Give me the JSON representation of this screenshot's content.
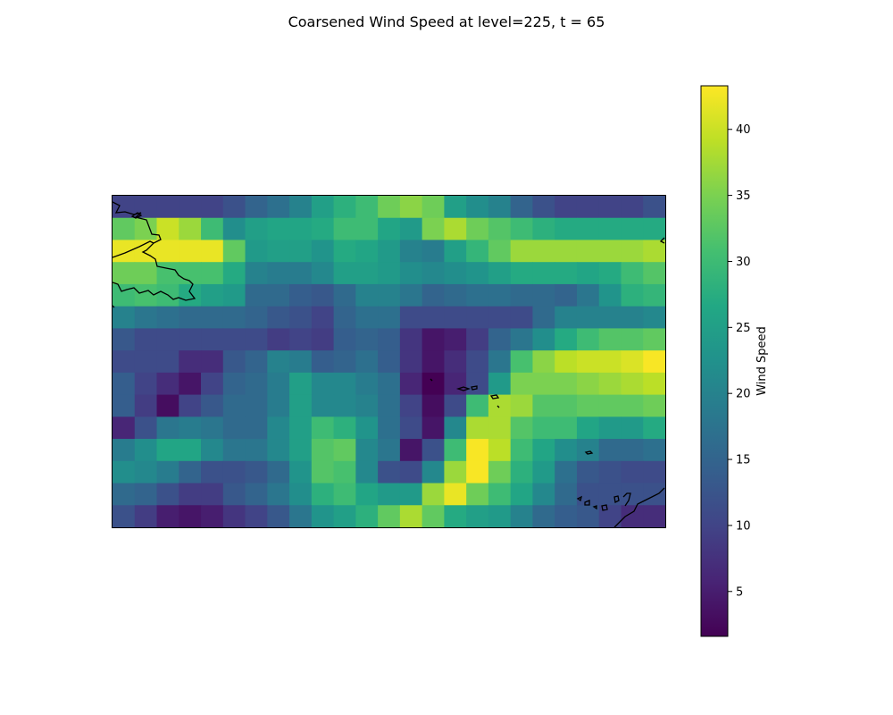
{
  "chart_data": {
    "type": "heatmap",
    "title": "Coarsened Wind Speed at level=225, t = 65",
    "xlabel": "",
    "ylabel": "",
    "colorbar": {
      "label": "Wind Speed",
      "range": [
        1.6,
        43.3
      ],
      "ticks": [
        5,
        10,
        15,
        20,
        25,
        30,
        35,
        40
      ],
      "colormap": "viridis"
    },
    "grid": false,
    "rows": 15,
    "cols": 25,
    "values": [
      [
        10,
        10,
        10,
        10,
        10,
        12,
        15,
        17,
        20,
        25,
        28,
        30,
        34,
        36,
        34,
        25,
        22,
        20,
        15,
        12,
        10,
        10,
        10,
        10,
        12
      ],
      [
        33,
        35,
        40,
        37,
        30,
        22,
        25,
        26,
        26,
        27,
        30,
        30,
        26,
        24,
        35,
        38,
        34,
        32,
        30,
        28,
        27,
        27,
        27,
        27,
        27
      ],
      [
        42,
        42,
        42,
        42,
        42,
        33,
        24,
        25,
        25,
        23,
        27,
        26,
        24,
        20,
        19,
        25,
        29,
        33,
        37,
        37,
        37,
        37,
        37,
        37,
        38
      ],
      [
        34,
        34,
        31,
        31,
        31,
        27,
        20,
        19,
        19,
        21,
        25,
        25,
        24,
        22,
        21,
        22,
        23,
        25,
        27,
        27,
        27,
        26,
        27,
        30,
        32
      ],
      [
        30,
        31,
        30,
        27,
        25,
        24,
        16,
        16,
        14,
        13,
        16,
        20,
        20,
        18,
        15,
        16,
        17,
        17,
        16,
        16,
        15,
        18,
        23,
        28,
        29
      ],
      [
        20,
        18,
        17,
        16,
        16,
        16,
        15,
        13,
        12,
        10,
        15,
        17,
        17,
        11,
        11,
        11,
        11,
        11,
        11,
        16,
        20,
        20,
        20,
        20,
        21
      ],
      [
        13,
        11,
        11,
        11,
        11,
        11,
        11,
        9,
        10,
        9,
        14,
        15,
        14,
        8,
        4,
        5,
        9,
        15,
        18,
        22,
        27,
        30,
        32,
        32,
        33
      ],
      [
        11,
        11,
        11,
        7,
        7,
        13,
        15,
        20,
        19,
        14,
        15,
        17,
        14,
        8,
        4,
        7,
        11,
        18,
        31,
        36,
        39,
        40,
        40,
        41,
        43
      ],
      [
        14,
        10,
        7,
        4,
        10,
        15,
        16,
        19,
        25,
        21,
        21,
        19,
        17,
        6,
        1,
        6,
        11,
        24,
        35,
        35,
        35,
        36,
        37,
        38,
        39
      ],
      [
        14,
        9,
        3,
        10,
        13,
        16,
        16,
        19,
        25,
        21,
        21,
        20,
        17,
        10,
        3,
        11,
        30,
        38,
        37,
        32,
        32,
        33,
        33,
        33,
        34
      ],
      [
        6,
        12,
        18,
        19,
        18,
        16,
        16,
        21,
        25,
        30,
        28,
        23,
        17,
        11,
        4,
        21,
        38,
        38,
        32,
        30,
        30,
        26,
        24,
        24,
        27
      ],
      [
        19,
        22,
        26,
        26,
        21,
        18,
        18,
        21,
        25,
        32,
        33,
        21,
        18,
        4,
        12,
        30,
        43,
        39,
        30,
        26,
        22,
        20,
        16,
        16,
        17
      ],
      [
        22,
        21,
        19,
        15,
        12,
        12,
        13,
        16,
        23,
        32,
        31,
        21,
        12,
        11,
        21,
        37,
        43,
        34,
        28,
        24,
        17,
        13,
        12,
        11,
        11
      ],
      [
        16,
        15,
        12,
        9,
        9,
        13,
        15,
        18,
        22,
        28,
        30,
        26,
        24,
        24,
        37,
        42,
        34,
        30,
        26,
        21,
        16,
        12,
        12,
        12,
        12
      ],
      [
        12,
        9,
        5,
        4,
        5,
        8,
        10,
        13,
        18,
        23,
        25,
        28,
        33,
        38,
        33,
        27,
        25,
        24,
        20,
        16,
        14,
        13,
        10,
        7,
        7
      ]
    ]
  },
  "map": {
    "coastlines": true
  }
}
